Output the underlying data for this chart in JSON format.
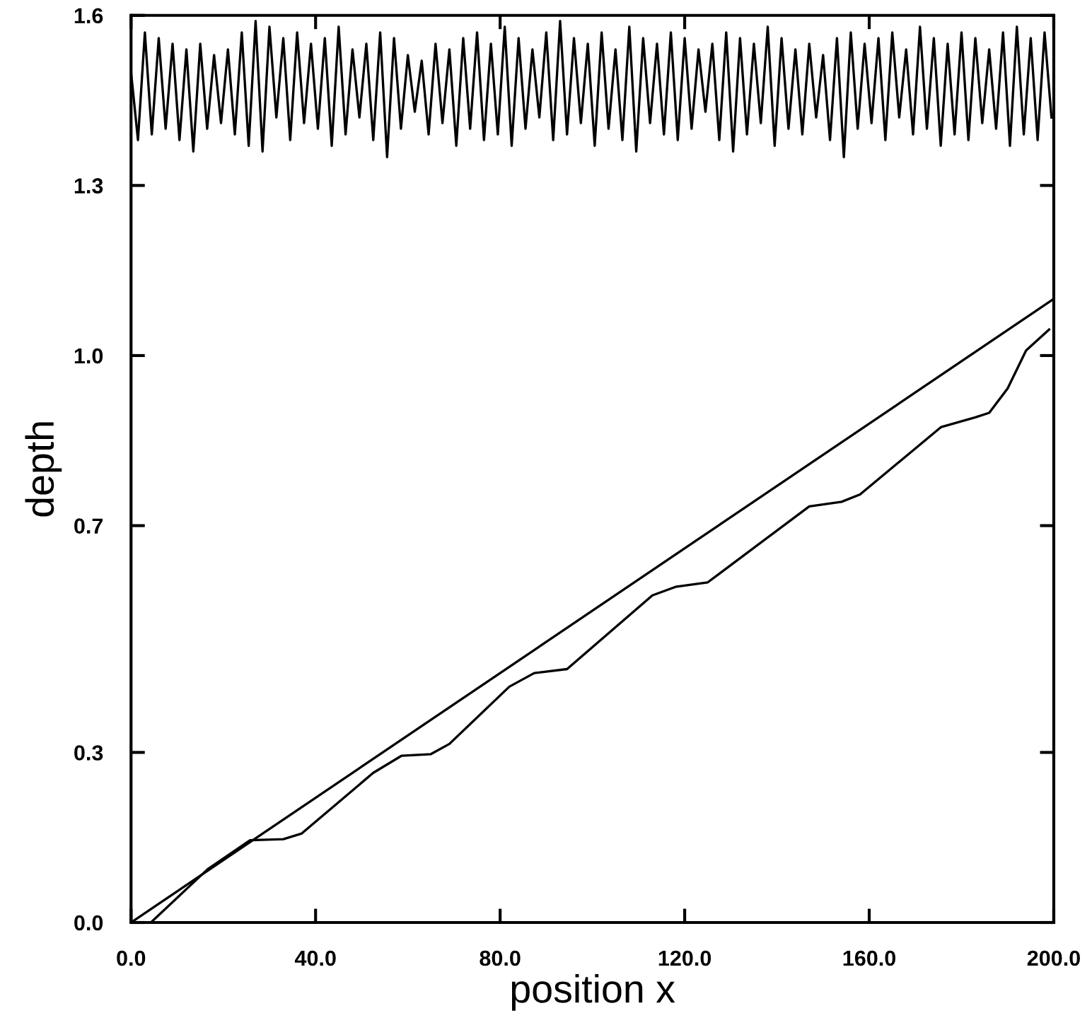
{
  "chart_data": {
    "type": "line",
    "xlabel": "position x",
    "ylabel": "depth",
    "xlim": [
      0,
      200
    ],
    "ylim": [
      0,
      1.6
    ],
    "xticks": [
      {
        "value": 0,
        "label": "0.0"
      },
      {
        "value": 40,
        "label": "40.0"
      },
      {
        "value": 80,
        "label": "80.0"
      },
      {
        "value": 120,
        "label": "120.0"
      },
      {
        "value": 160,
        "label": "160.0"
      },
      {
        "value": 200,
        "label": "200.0"
      }
    ],
    "yticks": [
      {
        "value": 0,
        "label": "0.0"
      },
      {
        "value": 0.3,
        "label": "0.3"
      },
      {
        "value": 0.7,
        "label": "0.7"
      },
      {
        "value": 1.0,
        "label": "1.0"
      },
      {
        "value": 1.3,
        "label": "1.3"
      },
      {
        "value": 1.6,
        "label": "1.6"
      }
    ],
    "grid": false,
    "marker": "none",
    "line_style": "solid",
    "series": [
      {
        "color": "#000000",
        "x": [
          0,
          200
        ],
        "values": [
          0,
          1.1
        ]
      },
      {
        "color": "#000000",
        "x": [
          4.3,
          16.6,
          25.8,
          33,
          37,
          52.5,
          58.6,
          65,
          69,
          82,
          87.4,
          94.5,
          113,
          118,
          125,
          147,
          154,
          158,
          175.6,
          183,
          186,
          190,
          194,
          199
        ],
        "values": [
          0,
          0.094,
          0.145,
          0.147,
          0.157,
          0.264,
          0.294,
          0.297,
          0.315,
          0.416,
          0.44,
          0.447,
          0.577,
          0.592,
          0.6,
          0.734,
          0.742,
          0.755,
          0.874,
          0.891,
          0.899,
          0.942,
          1.009,
          1.046
        ]
      },
      {
        "color": "#000000",
        "x": [
          0,
          1.5,
          3,
          4.5,
          6,
          7.5,
          9,
          10.5,
          12,
          13.5,
          15,
          16.5,
          18,
          19.5,
          21,
          22.5,
          24,
          25.5,
          27,
          28.5,
          30,
          31.5,
          33,
          34.5,
          36,
          37.5,
          39,
          40.5,
          42,
          43.5,
          45,
          46.5,
          48,
          49.5,
          51,
          52.5,
          54,
          55.5,
          57,
          58.5,
          60,
          61.5,
          63,
          64.5,
          66,
          67.5,
          69,
          70.5,
          72,
          73.5,
          75,
          76.5,
          78,
          79.5,
          81,
          82.5,
          84,
          85.5,
          87,
          88.5,
          90,
          91.5,
          93,
          94.5,
          96,
          97.5,
          99,
          100.5,
          102,
          103.5,
          105,
          106.5,
          108,
          109.5,
          111,
          112.5,
          114,
          115.5,
          117,
          118.5,
          120,
          121.5,
          123,
          124.5,
          126,
          127.5,
          129,
          130.5,
          132,
          133.5,
          135,
          136.5,
          138,
          139.5,
          141,
          142.5,
          144,
          145.5,
          147,
          148.5,
          150,
          151.5,
          153,
          154.5,
          156,
          157.5,
          159,
          160.5,
          162,
          163.5,
          165,
          166.5,
          168,
          169.5,
          171,
          172.5,
          174,
          175.5,
          177,
          178.5,
          180,
          181.5,
          183,
          184.5,
          186,
          187.5,
          189,
          190.5,
          192,
          193.5,
          195,
          196.5,
          198,
          199.5
        ],
        "values": [
          1.5,
          1.38,
          1.57,
          1.39,
          1.56,
          1.4,
          1.55,
          1.38,
          1.54,
          1.36,
          1.55,
          1.4,
          1.53,
          1.41,
          1.54,
          1.39,
          1.57,
          1.37,
          1.59,
          1.36,
          1.58,
          1.42,
          1.56,
          1.38,
          1.57,
          1.41,
          1.55,
          1.4,
          1.56,
          1.37,
          1.58,
          1.39,
          1.54,
          1.42,
          1.55,
          1.38,
          1.57,
          1.35,
          1.56,
          1.4,
          1.53,
          1.43,
          1.52,
          1.39,
          1.55,
          1.41,
          1.54,
          1.37,
          1.56,
          1.4,
          1.57,
          1.38,
          1.55,
          1.39,
          1.58,
          1.37,
          1.56,
          1.4,
          1.54,
          1.42,
          1.57,
          1.38,
          1.59,
          1.39,
          1.56,
          1.41,
          1.55,
          1.37,
          1.57,
          1.4,
          1.54,
          1.38,
          1.58,
          1.36,
          1.56,
          1.41,
          1.55,
          1.39,
          1.57,
          1.38,
          1.56,
          1.4,
          1.54,
          1.43,
          1.55,
          1.38,
          1.57,
          1.36,
          1.56,
          1.39,
          1.55,
          1.41,
          1.58,
          1.37,
          1.56,
          1.4,
          1.54,
          1.39,
          1.55,
          1.42,
          1.53,
          1.38,
          1.56,
          1.35,
          1.57,
          1.4,
          1.55,
          1.41,
          1.56,
          1.38,
          1.57,
          1.42,
          1.54,
          1.39,
          1.58,
          1.4,
          1.56,
          1.37,
          1.55,
          1.39,
          1.57,
          1.38,
          1.56,
          1.41,
          1.54,
          1.4,
          1.57,
          1.37,
          1.58,
          1.39,
          1.56,
          1.38,
          1.57,
          1.42
        ]
      }
    ]
  }
}
